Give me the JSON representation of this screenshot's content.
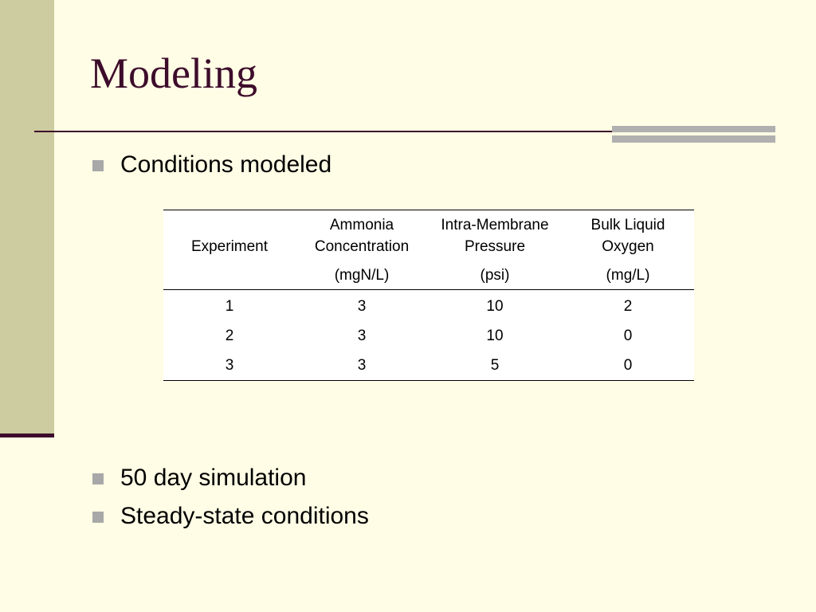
{
  "slide": {
    "title": "Modeling",
    "bullets_top": [
      "Conditions modeled"
    ],
    "bullets_bottom": [
      "50 day simulation",
      "Steady-state conditions"
    ]
  },
  "table": {
    "headers": [
      {
        "name": "Experiment",
        "unit": ""
      },
      {
        "name": "Ammonia Concentration",
        "unit": "(mgN/L)"
      },
      {
        "name": "Intra-Membrane Pressure",
        "unit": "(psi)"
      },
      {
        "name": "Bulk Liquid Oxygen",
        "unit": "(mg/L)"
      }
    ],
    "rows": [
      [
        "1",
        "3",
        "10",
        "2"
      ],
      [
        "2",
        "3",
        "10",
        "0"
      ],
      [
        "3",
        "3",
        "5",
        "0"
      ]
    ]
  },
  "colors": {
    "background": "#fffde5",
    "left_band": "#cdcba0",
    "title": "#3d0c2b",
    "accent_gray": "#b0b0b0"
  }
}
